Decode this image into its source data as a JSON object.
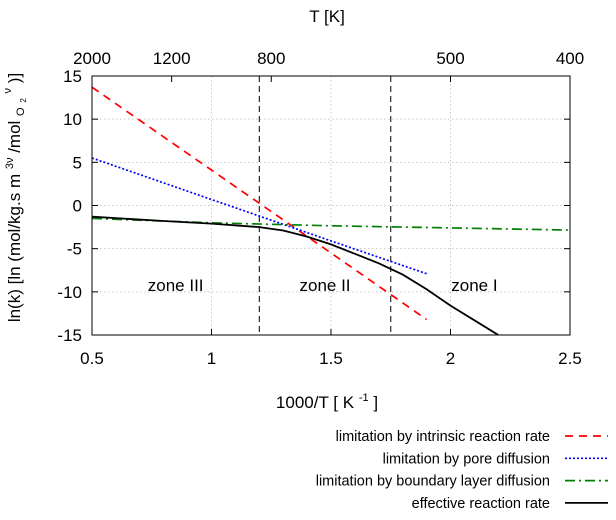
{
  "chart_data": {
    "type": "line",
    "x_axis": {
      "label": "1000/T",
      "unit": "K",
      "unit_superscript": "-1",
      "range": [
        0.5,
        2.5
      ],
      "ticks": [
        {
          "value": 0.5,
          "label": "0.5"
        },
        {
          "value": 1,
          "label": "1"
        },
        {
          "value": 1.5,
          "label": "1.5"
        },
        {
          "value": 2,
          "label": "2"
        },
        {
          "value": 2.5,
          "label": "2.5"
        }
      ]
    },
    "x2_axis": {
      "label": "T  [K]",
      "ticks": [
        {
          "value": 0.5,
          "label": "2000"
        },
        {
          "value": 0.8333,
          "label": "1200"
        },
        {
          "value": 1.25,
          "label": "800"
        },
        {
          "value": 2.0,
          "label": "500"
        },
        {
          "value": 2.5,
          "label": "400"
        }
      ]
    },
    "y_axis": {
      "label_prefix": "ln(k)  [ln (mol/kg.s m",
      "label_sup1": "3ν",
      "label_mid": "/mol",
      "label_sub": "O",
      "label_subsub": "2",
      "label_sup2": "ν",
      "label_suffix": ")]",
      "range": [
        -15,
        15
      ],
      "ticks": [
        {
          "value": 15,
          "label": "15"
        },
        {
          "value": 10,
          "label": "10"
        },
        {
          "value": 5,
          "label": "5"
        },
        {
          "value": 0,
          "label": "0"
        },
        {
          "value": -5,
          "label": "-5"
        },
        {
          "value": -10,
          "label": "-10"
        },
        {
          "value": -15,
          "label": "-15"
        }
      ]
    },
    "grid": "dotted",
    "zone_boundaries": [
      1.2,
      1.75
    ],
    "zones": [
      {
        "label": "zone III",
        "x": 0.85,
        "y": -9.2
      },
      {
        "label": "zone II",
        "x": 1.475,
        "y": -9.2
      },
      {
        "label": "zone I",
        "x": 2.1,
        "y": -9.2
      }
    ],
    "series": [
      {
        "name": "limitation by intrinsic reaction rate",
        "color": "#ff0000",
        "dash": "dashed",
        "x": [
          0.5,
          1.0,
          1.5,
          1.9
        ],
        "y": [
          13.7,
          4.1,
          -5.5,
          -13.2
        ]
      },
      {
        "name": "limitation by pore diffusion",
        "color": "#0000ff",
        "dash": "dotted",
        "x": [
          0.5,
          1.0,
          1.5,
          1.9
        ],
        "y": [
          5.5,
          0.7,
          -4.1,
          -7.9
        ]
      },
      {
        "name": "limitation by boundary layer diffusion",
        "color": "#008000",
        "dash": "dashdot",
        "x": [
          0.5,
          1.0,
          1.5,
          2.0,
          2.5
        ],
        "y": [
          -1.5,
          -2.0,
          -2.35,
          -2.6,
          -2.85
        ]
      },
      {
        "name": "effective reaction rate",
        "color": "#000000",
        "dash": "solid",
        "x": [
          0.5,
          0.8,
          1.0,
          1.2,
          1.3,
          1.4,
          1.5,
          1.6,
          1.7,
          1.8,
          1.9,
          2.0,
          2.1,
          2.2
        ],
        "y": [
          -1.3,
          -1.8,
          -2.1,
          -2.5,
          -2.9,
          -3.6,
          -4.5,
          -5.6,
          -6.7,
          -8.0,
          -9.7,
          -11.6,
          -13.3,
          -15.0
        ]
      }
    ],
    "legend_position": "below"
  }
}
